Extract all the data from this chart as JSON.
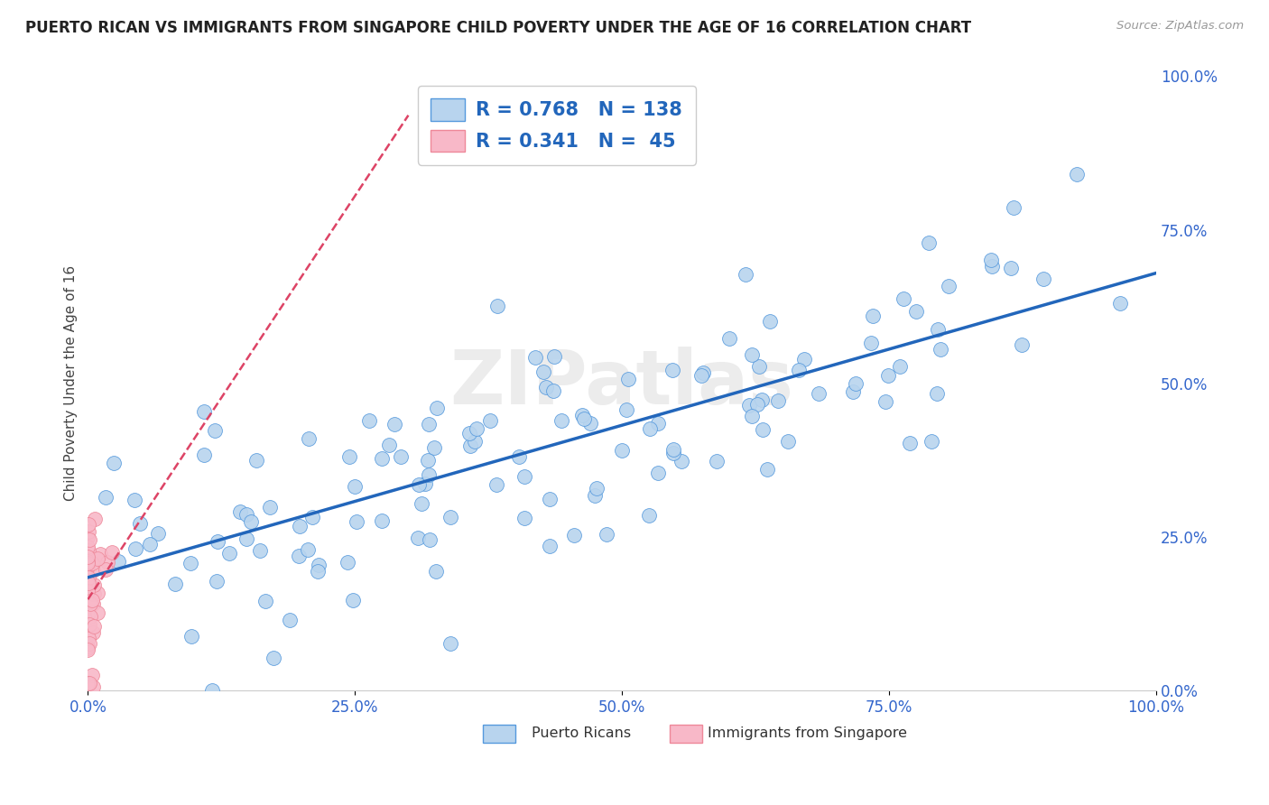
{
  "title": "PUERTO RICAN VS IMMIGRANTS FROM SINGAPORE CHILD POVERTY UNDER THE AGE OF 16 CORRELATION CHART",
  "source": "Source: ZipAtlas.com",
  "ylabel": "Child Poverty Under the Age of 16",
  "blue_R": 0.768,
  "blue_N": 138,
  "pink_R": 0.341,
  "pink_N": 45,
  "blue_color": "#b8d4ee",
  "blue_edge_color": "#5599dd",
  "blue_line_color": "#2266bb",
  "pink_color": "#f8b8c8",
  "pink_edge_color": "#ee8899",
  "pink_line_color": "#dd4466",
  "watermark": "ZIPatlas",
  "tick_color": "#3366cc",
  "title_fontsize": 12,
  "axis_label_fontsize": 11,
  "tick_fontsize": 12,
  "legend_fontsize": 15,
  "legend_blue_label": "R = 0.768   N = 138",
  "legend_pink_label": "R = 0.341   N =  45",
  "bottom_label_blue": "Puerto Ricans",
  "bottom_label_pink": "Immigrants from Singapore"
}
